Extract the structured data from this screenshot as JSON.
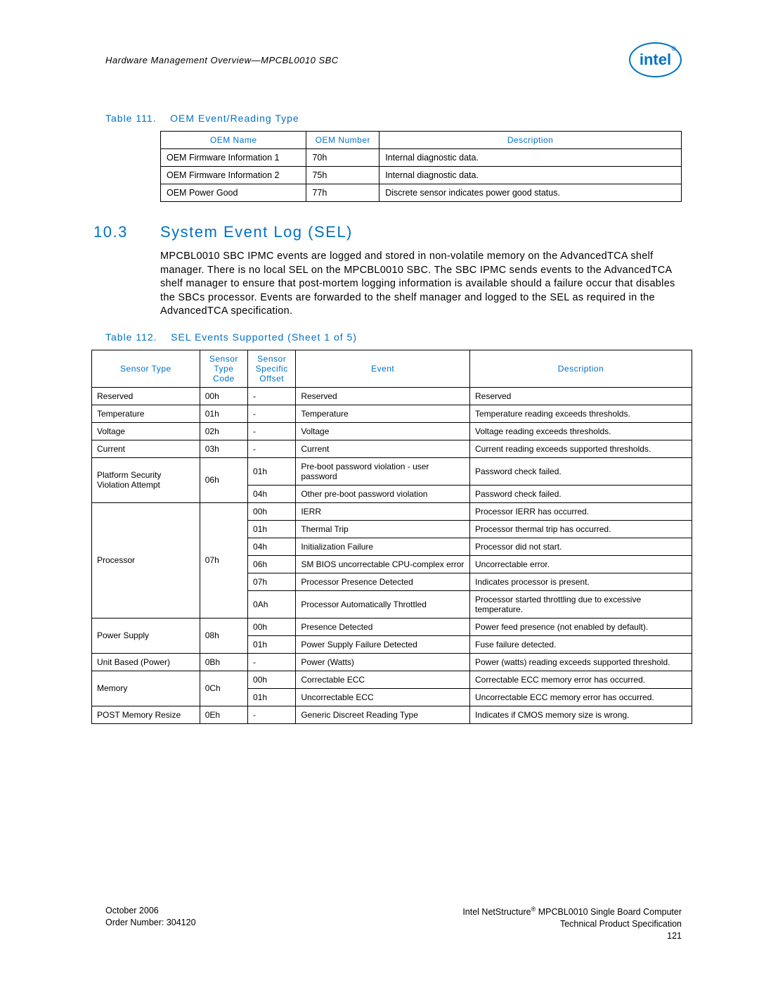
{
  "header": {
    "text": "Hardware Management Overview—MPCBL0010 SBC",
    "logo_text": "intel",
    "logo_reg": "®",
    "logo_color": "#0071c5"
  },
  "accent_color": "#0071c5",
  "table111": {
    "caption_prefix": "Table 111.",
    "caption": "OEM Event/Reading Type",
    "headers": [
      "OEM Name",
      "OEM Number",
      "Description"
    ],
    "rows": [
      [
        "OEM Firmware Information 1",
        "70h",
        "Internal diagnostic data."
      ],
      [
        "OEM Firmware Information 2",
        "75h",
        "Internal diagnostic data."
      ],
      [
        "OEM Power Good",
        "77h",
        "Discrete sensor indicates power good status."
      ]
    ]
  },
  "section": {
    "number": "10.3",
    "title": "System Event Log (SEL)",
    "body": "MPCBL0010 SBC IPMC events are logged and stored in non-volatile memory on the AdvancedTCA shelf manager. There is no local SEL on the MPCBL0010 SBC. The SBC IPMC sends events to the AdvancedTCA shelf manager to ensure that post-mortem logging information is available should a failure occur that disables the SBCs processor. Events are forwarded to the shelf manager and logged to the SEL as required in the AdvancedTCA specification."
  },
  "table112": {
    "caption_prefix": "Table 112.",
    "caption": "SEL Events Supported  (Sheet 1 of 5)",
    "headers": [
      "Sensor Type",
      "Sensor Type Code",
      "Sensor Specific Offset",
      "Event",
      "Description"
    ],
    "groups": [
      {
        "sensor_type": "Reserved",
        "code": "00h",
        "rows": [
          {
            "offset": "-",
            "event": "Reserved",
            "desc": "Reserved"
          }
        ]
      },
      {
        "sensor_type": "Temperature",
        "code": "01h",
        "rows": [
          {
            "offset": "-",
            "event": "Temperature",
            "desc": "Temperature reading exceeds thresholds."
          }
        ]
      },
      {
        "sensor_type": "Voltage",
        "code": "02h",
        "rows": [
          {
            "offset": "-",
            "event": "Voltage",
            "desc": "Voltage reading exceeds thresholds."
          }
        ]
      },
      {
        "sensor_type": "Current",
        "code": "03h",
        "rows": [
          {
            "offset": "-",
            "event": "Current",
            "desc": "Current reading exceeds supported thresholds."
          }
        ]
      },
      {
        "sensor_type": "Platform Security Violation Attempt",
        "code": "06h",
        "rows": [
          {
            "offset": "01h",
            "event": "Pre-boot password violation - user password",
            "desc": "Password check failed."
          },
          {
            "offset": "04h",
            "event": "Other pre-boot password violation",
            "desc": "Password check failed."
          }
        ]
      },
      {
        "sensor_type": "Processor",
        "code": "07h",
        "rows": [
          {
            "offset": "00h",
            "event": "IERR",
            "desc": "Processor IERR has occurred."
          },
          {
            "offset": "01h",
            "event": "Thermal Trip",
            "desc": "Processor thermal trip has occurred."
          },
          {
            "offset": "04h",
            "event": "Initialization Failure",
            "desc": "Processor did not start."
          },
          {
            "offset": "06h",
            "event": "SM BIOS uncorrectable CPU-complex error",
            "desc": "Uncorrectable error."
          },
          {
            "offset": "07h",
            "event": "Processor Presence Detected",
            "desc": "Indicates processor is present."
          },
          {
            "offset": "0Ah",
            "event": "Processor Automatically Throttled",
            "desc": "Processor started throttling due to excessive temperature."
          }
        ]
      },
      {
        "sensor_type": "Power Supply",
        "code": "08h",
        "rows": [
          {
            "offset": "00h",
            "event": "Presence Detected",
            "desc": "Power feed presence (not enabled by default)."
          },
          {
            "offset": "01h",
            "event": "Power Supply Failure Detected",
            "desc": "Fuse failure detected."
          }
        ]
      },
      {
        "sensor_type": "Unit Based (Power)",
        "code": "0Bh",
        "rows": [
          {
            "offset": "-",
            "event": "Power (Watts)",
            "desc": "Power (watts) reading exceeds supported threshold."
          }
        ]
      },
      {
        "sensor_type": "Memory",
        "code": "0Ch",
        "rows": [
          {
            "offset": "00h",
            "event": "Correctable ECC",
            "desc": "Correctable ECC memory error has occurred."
          },
          {
            "offset": "01h",
            "event": "Uncorrectable ECC",
            "desc": "Uncorrectable ECC memory error has occurred."
          }
        ]
      },
      {
        "sensor_type": "POST Memory Resize",
        "code": "0Eh",
        "rows": [
          {
            "offset": "-",
            "event": "Generic Discreet Reading Type",
            "desc": "Indicates if CMOS memory size is wrong."
          }
        ]
      }
    ]
  },
  "footer": {
    "left_line1": "October 2006",
    "left_line2": "Order Number: 304120",
    "right_line1_a": "Intel NetStructure",
    "right_line1_reg": "®",
    "right_line1_b": " MPCBL0010 Single Board Computer",
    "right_line2": "Technical Product Specification",
    "right_line3": "121"
  }
}
